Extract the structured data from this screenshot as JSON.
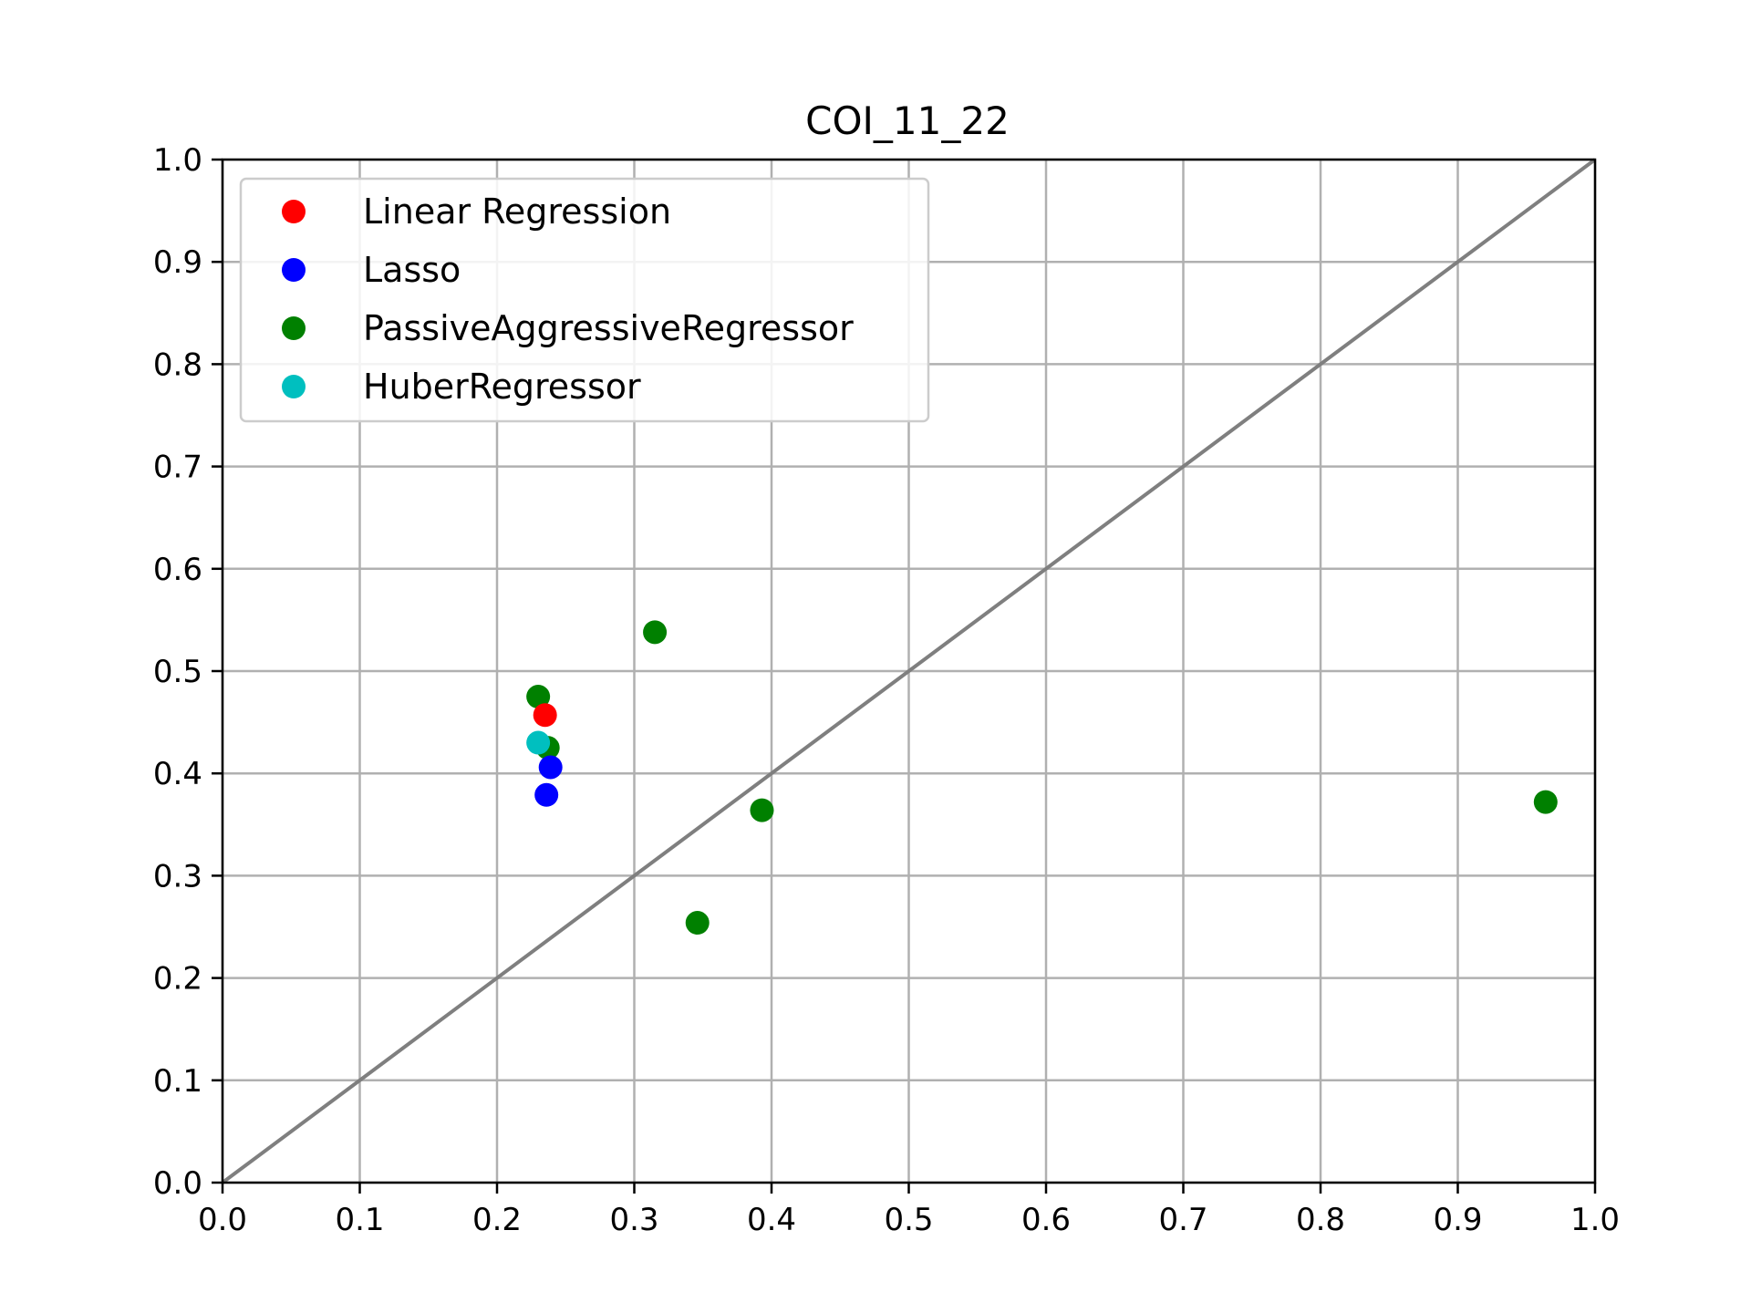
{
  "chart_data": {
    "type": "scatter",
    "title": "COI_11_22",
    "xlabel": "",
    "ylabel": "",
    "xlim": [
      0,
      1
    ],
    "ylim": [
      0,
      1
    ],
    "x_ticks": [
      "0.0",
      "0.1",
      "0.2",
      "0.3",
      "0.4",
      "0.5",
      "0.6",
      "0.7",
      "0.8",
      "0.9",
      "1.0"
    ],
    "y_ticks": [
      "0.0",
      "0.1",
      "0.2",
      "0.3",
      "0.4",
      "0.5",
      "0.6",
      "0.7",
      "0.8",
      "0.9",
      "1.0"
    ],
    "grid": true,
    "legend_position": "top-left",
    "reference_line": {
      "x": [
        0,
        1
      ],
      "y": [
        0,
        1
      ],
      "color": "#7f7f7f"
    },
    "series": [
      {
        "name": "PassiveAggressiveRegressor",
        "color": "#008000",
        "points": [
          [
            0.23,
            0.475
          ],
          [
            0.237,
            0.425
          ],
          [
            0.315,
            0.538
          ],
          [
            0.346,
            0.254
          ],
          [
            0.393,
            0.364
          ],
          [
            0.964,
            0.372
          ]
        ]
      },
      {
        "name": "Linear Regression",
        "color": "#ff0000",
        "points": [
          [
            0.235,
            0.457
          ]
        ]
      },
      {
        "name": "Lasso",
        "color": "#0000ff",
        "points": [
          [
            0.236,
            0.379
          ],
          [
            0.239,
            0.406
          ]
        ]
      },
      {
        "name": "HuberRegressor",
        "color": "#00bfbf",
        "points": [
          [
            0.23,
            0.43
          ]
        ]
      }
    ],
    "legend_order": [
      "Linear Regression",
      "Lasso",
      "PassiveAggressiveRegressor",
      "HuberRegressor"
    ]
  }
}
